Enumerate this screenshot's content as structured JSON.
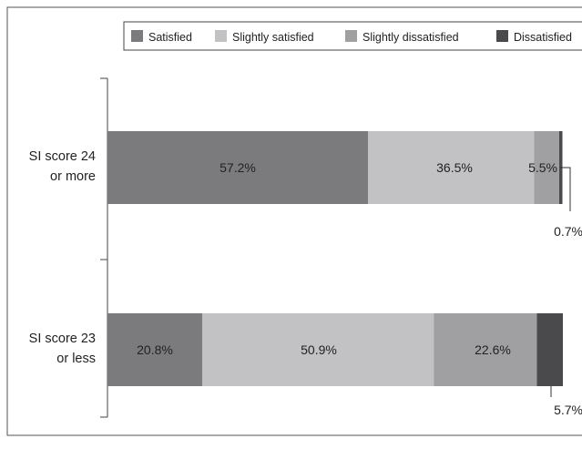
{
  "chart_data": {
    "type": "bar",
    "orientation": "horizontal",
    "stacked": true,
    "categories": [
      "SI score 24 or more",
      "SI score 23 or less"
    ],
    "category_lines": [
      [
        "SI score 24",
        "or more"
      ],
      [
        "SI score 23",
        "or less"
      ]
    ],
    "series": [
      {
        "name": "Satisfied",
        "color": "#7b7b7d",
        "values": [
          57.2,
          20.8
        ]
      },
      {
        "name": "Slightly satisfied",
        "color": "#c2c2c4",
        "values": [
          36.5,
          50.9
        ]
      },
      {
        "name": "Slightly dissatisfied",
        "color": "#a0a0a2",
        "values": [
          5.5,
          22.6
        ]
      },
      {
        "name": "Dissatisfied",
        "color": "#4a4a4c",
        "values": [
          0.7,
          5.7
        ]
      }
    ],
    "data_labels": [
      [
        "57.2%",
        "36.5%",
        "5.5%",
        "0.7%"
      ],
      [
        "20.8%",
        "50.9%",
        "22.6%",
        "5.7%"
      ]
    ],
    "xlim": [
      0,
      100
    ],
    "legend_position": "top",
    "grid": false
  }
}
